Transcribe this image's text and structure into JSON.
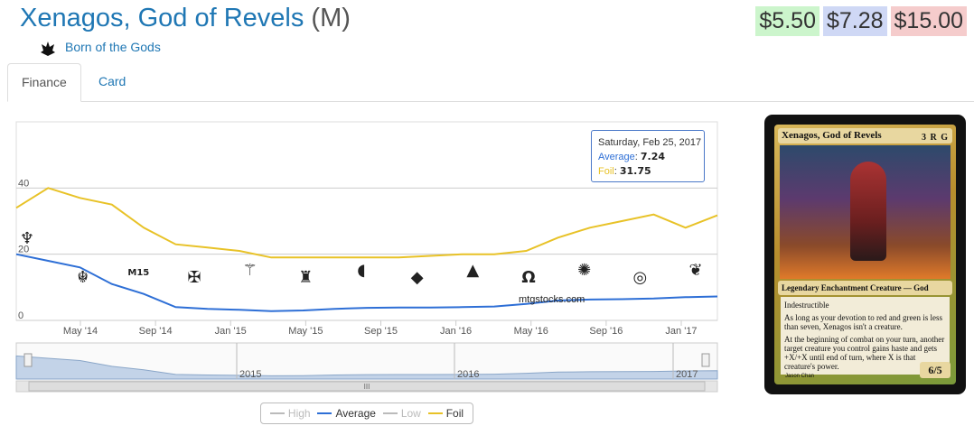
{
  "header": {
    "card_name": "Xenagos, God of Revels",
    "rarity": "(M)",
    "set_icon": "born-of-the-gods-set-icon",
    "set_name": "Born of the Gods"
  },
  "prices": [
    {
      "label": "$5.50",
      "color": "#ccf5cc"
    },
    {
      "label": "$7.28",
      "color": "#cfd8f5"
    },
    {
      "label": "$15.00",
      "color": "#f5cccc"
    }
  ],
  "tabs": [
    {
      "label": "Finance",
      "active": true
    },
    {
      "label": "Card",
      "active": false
    }
  ],
  "tooltip": {
    "date": "Saturday, Feb 25, 2017",
    "average_label": "Average",
    "average_value": "7.24",
    "foil_label": "Foil",
    "foil_value": "31.75"
  },
  "watermark": "mtgstocks.com",
  "legend": [
    {
      "label": "High",
      "color": "#bbbbbb",
      "enabled": false
    },
    {
      "label": "Average",
      "color": "#2e6fd6",
      "enabled": true
    },
    {
      "label": "Low",
      "color": "#bbbbbb",
      "enabled": false
    },
    {
      "label": "Foil",
      "color": "#e8c227",
      "enabled": true
    }
  ],
  "chart_data": {
    "type": "line",
    "x_ticks": [
      "May '14",
      "Sep '14",
      "Jan '15",
      "May '15",
      "Sep '15",
      "Jan '16",
      "May '16",
      "Sep '16",
      "Jan '17"
    ],
    "y_ticks": [
      "0",
      "20",
      "40"
    ],
    "ylim": [
      0,
      60
    ],
    "navigator_ticks": [
      "2015",
      "2016",
      "2017"
    ],
    "scroll_label": "III",
    "series": [
      {
        "name": "Average",
        "color": "#2e6fd6",
        "values": [
          20,
          18,
          16,
          11,
          8,
          4,
          3.5,
          3.2,
          2.8,
          3.0,
          3.5,
          3.8,
          3.9,
          3.9,
          4.0,
          4.2,
          5.0,
          6.0,
          6.3,
          6.4,
          6.6,
          7.0,
          7.24
        ]
      },
      {
        "name": "Foil",
        "color": "#e8c227",
        "values": [
          34,
          40,
          37,
          35,
          28,
          23,
          22,
          21,
          19,
          19,
          19,
          19,
          19,
          19.5,
          20,
          20,
          21,
          25,
          28,
          30,
          32,
          28,
          31.75
        ]
      }
    ],
    "set_markers": [
      {
        "icon": "born-of-the-gods-set-icon",
        "symbol": "♆"
      },
      {
        "icon": "journey-into-nyx-set-icon",
        "symbol": "☬"
      },
      {
        "icon": "m15-set-icon",
        "symbol": "M15"
      },
      {
        "icon": "khans-of-tarkir-set-icon",
        "symbol": "✠"
      },
      {
        "icon": "fate-reforged-set-icon",
        "symbol": "⚚"
      },
      {
        "icon": "dragons-of-tarkir-set-icon",
        "symbol": "♜"
      },
      {
        "icon": "magic-origins-set-icon",
        "symbol": "◖"
      },
      {
        "icon": "battle-for-zendikar-set-icon",
        "symbol": "◆"
      },
      {
        "icon": "oath-of-the-gatewatch-set-icon",
        "symbol": "▲"
      },
      {
        "icon": "shadows-over-innistrad-set-icon",
        "symbol": "Ω"
      },
      {
        "icon": "eldritch-moon-set-icon",
        "symbol": "✺"
      },
      {
        "icon": "kaladesh-set-icon",
        "symbol": "◎"
      },
      {
        "icon": "aether-revolt-set-icon",
        "symbol": "❦"
      }
    ]
  },
  "card": {
    "name": "Xenagos, God of Revels",
    "mana_cost": "3 R G",
    "type_line": "Legendary Enchantment Creature — God",
    "rules": [
      "Indestructible",
      "As long as your devotion to red and green is less than seven, Xenagos isn't a creature.",
      "At the beginning of combat on your turn, another target creature you control gains haste and gets +X/+X until end of turn, where X is that creature's power."
    ],
    "power_toughness": "6/5",
    "artist": "Jason Chan"
  }
}
